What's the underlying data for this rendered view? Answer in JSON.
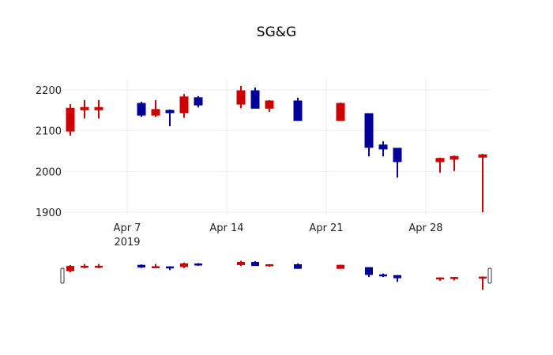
{
  "chart_data": {
    "type": "candlestick",
    "title": "SG&G",
    "xlabel": "",
    "ylabel": "",
    "ylim": [
      1890,
      2225
    ],
    "y_ticks": [
      1900,
      2000,
      2100,
      2200
    ],
    "x_ticks": [
      {
        "label": "Apr 7",
        "sublabel": "2019",
        "date": "2019-04-07"
      },
      {
        "label": "Apr 14",
        "sublabel": "",
        "date": "2019-04-14"
      },
      {
        "label": "Apr 21",
        "sublabel": "",
        "date": "2019-04-21"
      },
      {
        "label": "Apr 28",
        "sublabel": "",
        "date": "2019-04-28"
      }
    ],
    "grid": true,
    "rangeslider": true,
    "increasing_color": "#cc0000",
    "decreasing_color": "#000099",
    "candles": [
      {
        "date": "2019-04-03",
        "open": 2099,
        "high": 2165,
        "low": 2088,
        "close": 2155
      },
      {
        "date": "2019-04-04",
        "open": 2153,
        "high": 2175,
        "low": 2130,
        "close": 2157
      },
      {
        "date": "2019-04-05",
        "open": 2153,
        "high": 2175,
        "low": 2130,
        "close": 2157
      },
      {
        "date": "2019-04-08",
        "open": 2167,
        "high": 2171,
        "low": 2134,
        "close": 2138
      },
      {
        "date": "2019-04-09",
        "open": 2138,
        "high": 2175,
        "low": 2134,
        "close": 2152
      },
      {
        "date": "2019-04-10",
        "open": 2150,
        "high": 2152,
        "low": 2111,
        "close": 2144
      },
      {
        "date": "2019-04-11",
        "open": 2144,
        "high": 2190,
        "low": 2132,
        "close": 2183
      },
      {
        "date": "2019-04-12",
        "open": 2181,
        "high": 2185,
        "low": 2157,
        "close": 2163
      },
      {
        "date": "2019-04-15",
        "open": 2165,
        "high": 2210,
        "low": 2155,
        "close": 2198
      },
      {
        "date": "2019-04-16",
        "open": 2198,
        "high": 2206,
        "low": 2155,
        "close": 2155
      },
      {
        "date": "2019-04-17",
        "open": 2155,
        "high": 2175,
        "low": 2146,
        "close": 2173
      },
      {
        "date": "2019-04-19",
        "open": 2173,
        "high": 2181,
        "low": 2125,
        "close": 2125
      },
      {
        "date": "2019-04-22",
        "open": 2125,
        "high": 2169,
        "low": 2125,
        "close": 2167
      },
      {
        "date": "2019-04-24",
        "open": 2142,
        "high": 2142,
        "low": 2037,
        "close": 2059
      },
      {
        "date": "2019-04-25",
        "open": 2065,
        "high": 2074,
        "low": 2037,
        "close": 2055
      },
      {
        "date": "2019-04-26",
        "open": 2057,
        "high": 2057,
        "low": 1985,
        "close": 2024
      },
      {
        "date": "2019-04-29",
        "open": 2024,
        "high": 2034,
        "low": 1997,
        "close": 2032
      },
      {
        "date": "2019-04-30",
        "open": 2030,
        "high": 2039,
        "low": 2001,
        "close": 2037
      },
      {
        "date": "2019-05-02",
        "open": 2035,
        "high": 2043,
        "low": 1900,
        "close": 2041
      }
    ]
  }
}
